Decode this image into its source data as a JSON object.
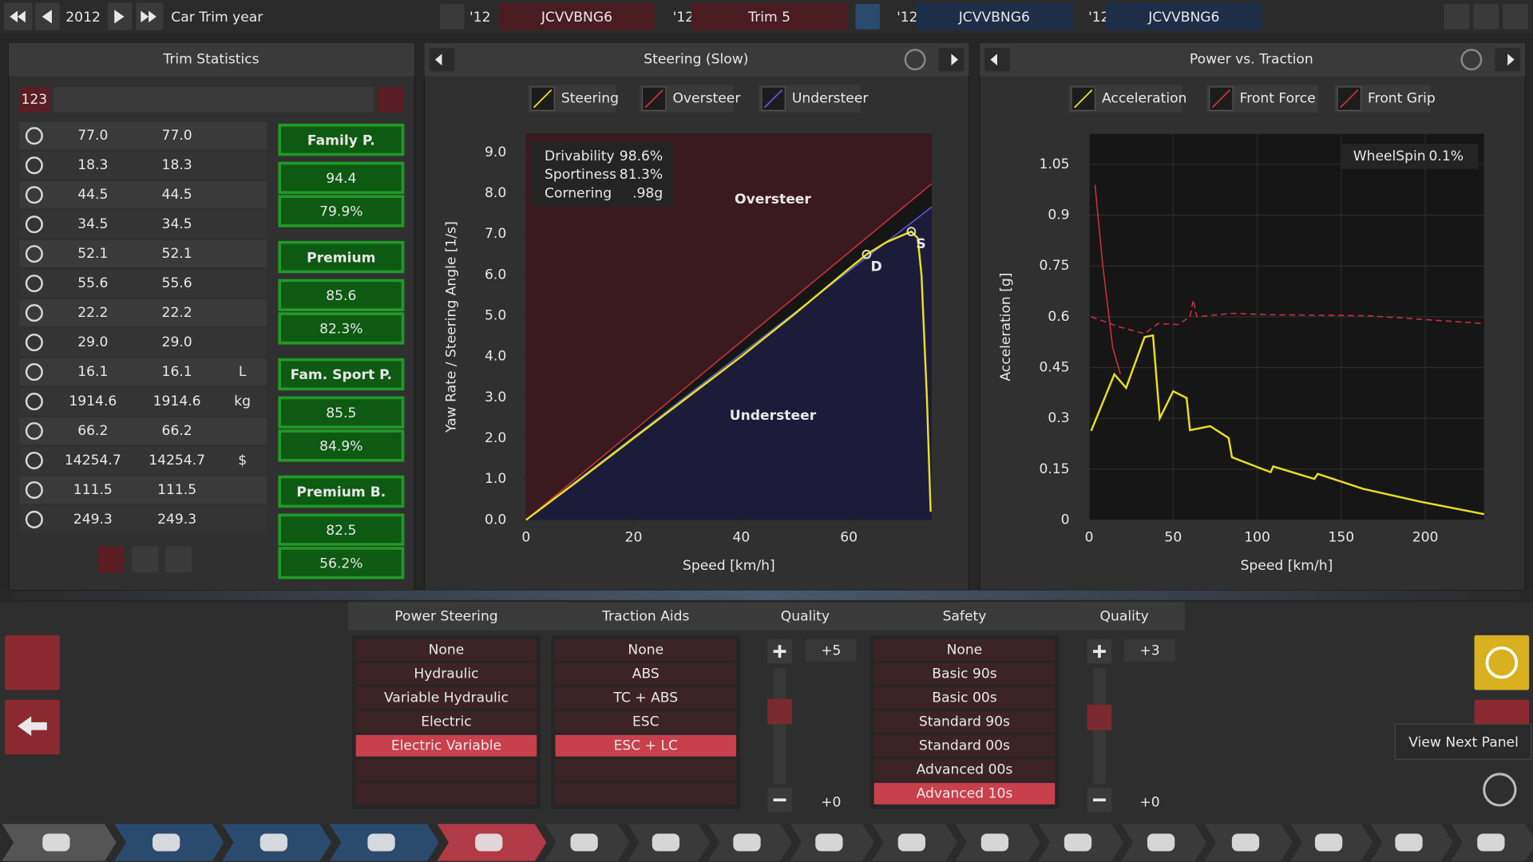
{
  "top_bar": {
    "year": "2012",
    "year_label": "Car Trim year",
    "models": [
      {
        "year": "'12",
        "name": "JCVVBNG6"
      },
      {
        "year": "'12",
        "name": "Trim 5"
      },
      {
        "year": "'12",
        "name": "JCVVBNG6"
      },
      {
        "year": "'12",
        "name": "JCVVBNG6"
      }
    ]
  },
  "trim_statistics": {
    "title": "Trim Statistics",
    "id": "123",
    "rows": [
      {
        "values": [
          "77.0",
          "77.0"
        ]
      },
      {
        "values": [
          "18.3",
          "18.3"
        ]
      },
      {
        "values": [
          "44.5",
          "44.5"
        ]
      },
      {
        "values": [
          "34.5",
          "34.5"
        ]
      },
      {
        "values": [
          "52.1",
          "52.1"
        ]
      },
      {
        "values": [
          "55.6",
          "55.6"
        ]
      },
      {
        "values": [
          "22.2",
          "22.2"
        ]
      },
      {
        "values": [
          "29.0",
          "29.0"
        ]
      },
      {
        "values": [
          "16.1",
          "16.1"
        ],
        "unit": "L"
      },
      {
        "values": [
          "1914.6",
          "1914.6"
        ],
        "unit": "kg"
      },
      {
        "values": [
          "66.2",
          "66.2"
        ]
      },
      {
        "values": [
          "14254.7",
          "14254.7"
        ],
        "unit": "$"
      },
      {
        "values": [
          "111.5",
          "111.5"
        ]
      },
      {
        "values": [
          "249.3",
          "249.3"
        ]
      }
    ],
    "scores": [
      {
        "name": "Family P.",
        "score": "94.4",
        "share": "79.9%"
      },
      {
        "name": "Premium",
        "score": "85.6",
        "share": "82.3%"
      },
      {
        "name": "Fam. Sport P.",
        "score": "85.5",
        "share": "84.9%"
      },
      {
        "name": "Premium B.",
        "score": "82.5",
        "share": "56.2%"
      }
    ]
  },
  "steering_chart": {
    "type": "line",
    "title": "Steering (Slow)",
    "x_label": "Speed [km/h]",
    "y_label": "Yaw Rate / Steering Angle [1/s]",
    "xlim": [
      0,
      75.4
    ],
    "ylim": [
      0,
      9.45
    ],
    "xticks": [
      0,
      20,
      40,
      60
    ],
    "yticks": [
      {
        "value": 0,
        "label": "0.0"
      },
      {
        "value": 1,
        "label": "1.0"
      },
      {
        "value": 2,
        "label": "2.0"
      },
      {
        "value": 3,
        "label": "3.0"
      },
      {
        "value": 4,
        "label": "4.0"
      },
      {
        "value": 5,
        "label": "5.0"
      },
      {
        "value": 6,
        "label": "6.0"
      },
      {
        "value": 7,
        "label": "7.0"
      },
      {
        "value": 8,
        "label": "8.0"
      },
      {
        "value": 9,
        "label": "9.0"
      }
    ],
    "grid": false,
    "shade_regions": true,
    "series": [
      {
        "name": "Steering",
        "color": "#e8e020",
        "x": [
          0,
          10,
          20,
          30,
          40,
          50,
          60,
          63.3,
          67,
          71.6,
          72.8,
          73.5,
          74.5,
          75.2
        ],
        "values": [
          0,
          0.99,
          2.0,
          3.0,
          4.0,
          5.05,
          6.15,
          6.5,
          6.8,
          7.06,
          6.9,
          6.0,
          3.0,
          0.2
        ]
      },
      {
        "name": "Oversteer",
        "color": "#c8303c",
        "x": [
          0,
          75.4
        ],
        "values": [
          0,
          8.23
        ]
      },
      {
        "name": "Understeer",
        "color": "#5a5ad0",
        "x": [
          0,
          75.4
        ],
        "values": [
          0,
          7.66
        ]
      }
    ],
    "regions": [
      "Oversteer",
      "Understeer"
    ],
    "markers": [
      {
        "label": "D",
        "x": 63.3,
        "y": 6.5
      },
      {
        "label": "S",
        "x": 71.6,
        "y": 7.06
      }
    ],
    "stats": [
      {
        "label": "Drivability",
        "value": "98.6%"
      },
      {
        "label": "Sportiness",
        "value": "81.3%"
      },
      {
        "label": "Cornering",
        "value": ".98g"
      }
    ]
  },
  "power_chart": {
    "type": "line",
    "title": "Power vs. Traction",
    "x_label": "Speed [km/h]",
    "y_label": "Acceleration [g]",
    "xlim": [
      0,
      235
    ],
    "ylim": [
      0,
      1.14
    ],
    "xticks": [
      0,
      50,
      100,
      150,
      200
    ],
    "yticks": [
      0,
      0.15,
      0.3,
      0.45,
      0.6,
      0.75,
      0.9,
      1.05
    ],
    "grid": true,
    "series": [
      {
        "name": "Acceleration",
        "color": "#e8e020",
        "x": [
          1.2,
          15,
          22,
          33,
          38,
          42,
          50,
          58,
          60,
          72,
          83,
          85,
          108,
          109.5,
          134,
          136,
          163,
          196,
          235
        ],
        "values": [
          0.263,
          0.43,
          0.39,
          0.54,
          0.545,
          0.3,
          0.38,
          0.36,
          0.265,
          0.277,
          0.242,
          0.185,
          0.141,
          0.158,
          0.121,
          0.136,
          0.092,
          0.055,
          0.017
        ]
      },
      {
        "name": "Front Force",
        "color": "#c8303c",
        "x": [
          3.5,
          8,
          14,
          18.6
        ],
        "values": [
          0.99,
          0.756,
          0.51,
          0.43
        ]
      },
      {
        "name": "Front Grip",
        "color": "#c8303c",
        "dashed": true,
        "x": [
          1.2,
          18,
          33,
          41,
          53,
          60,
          62,
          64,
          85,
          108,
          166,
          235
        ],
        "values": [
          0.6,
          0.57,
          0.55,
          0.58,
          0.577,
          0.6,
          0.65,
          0.6,
          0.61,
          0.606,
          0.603,
          0.58
        ]
      }
    ],
    "annotation": {
      "label": "WheelSpin",
      "value": "0.1%"
    }
  },
  "options": {
    "power_steering": {
      "title": "Power Steering",
      "items": [
        "None",
        "Hydraulic",
        "Variable Hydraulic",
        "Electric",
        "Electric Variable"
      ],
      "selected": 4
    },
    "traction_aids": {
      "title": "Traction Aids",
      "items": [
        "None",
        "ABS",
        "TC + ABS",
        "ESC",
        "ESC + LC"
      ],
      "selected": 4
    },
    "quality_1": {
      "title": "Quality",
      "value": "+5",
      "base": "+0"
    },
    "safety": {
      "title": "Safety",
      "items": [
        "None",
        "Basic 90s",
        "Basic 00s",
        "Standard 90s",
        "Standard 00s",
        "Advanced 00s",
        "Advanced 10s"
      ],
      "selected": 6
    },
    "quality_2": {
      "title": "Quality",
      "value": "+3",
      "base": "+0"
    }
  },
  "tooltip": "View Next Panel"
}
